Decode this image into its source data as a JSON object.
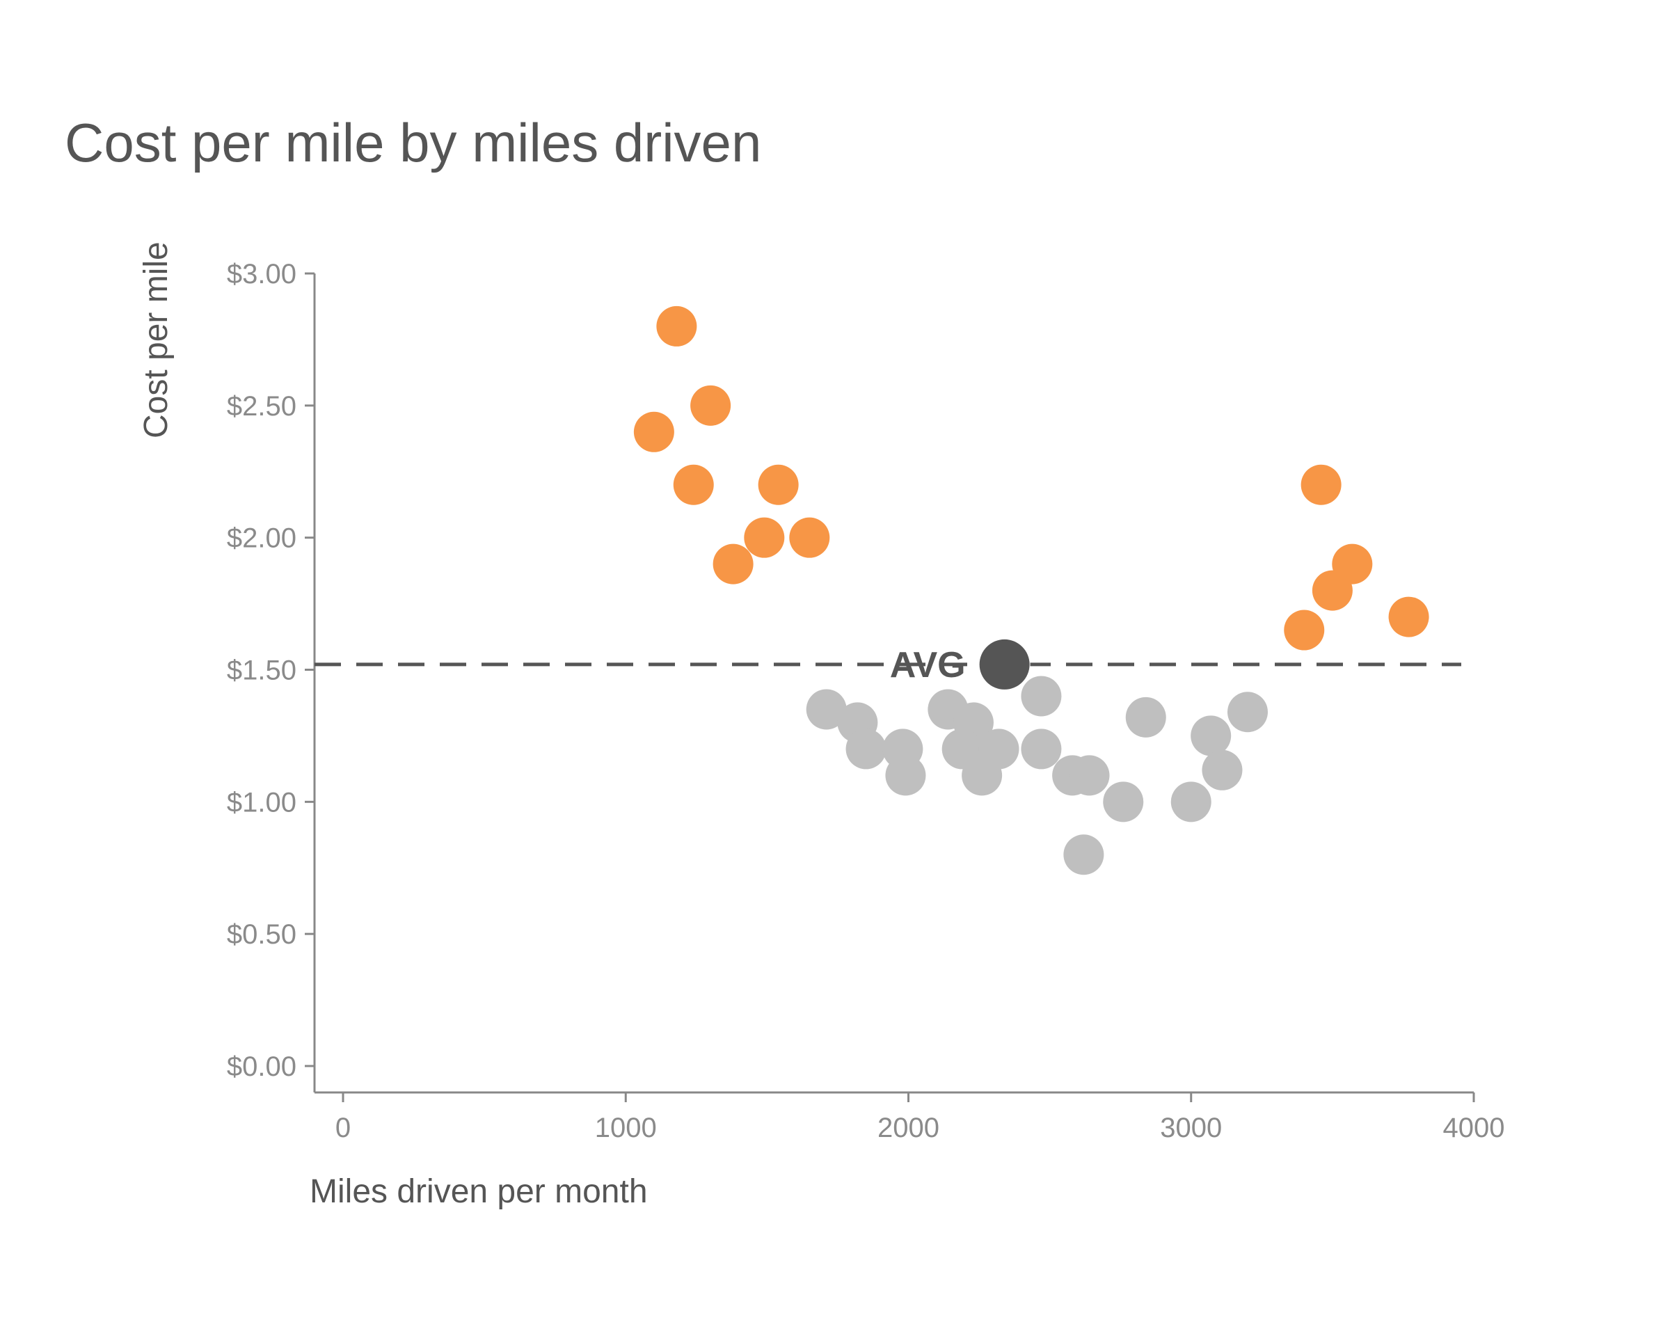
{
  "chart_data": {
    "type": "scatter",
    "title": "Cost per mile by miles driven",
    "xlabel": "Miles driven per month",
    "ylabel": "Cost per mile",
    "xlim": [
      -100,
      4000
    ],
    "ylim": [
      -0.1,
      3.0
    ],
    "x_ticks": [
      0,
      1000,
      2000,
      3000,
      4000
    ],
    "x_tick_labels": [
      "0",
      "1000",
      "2000",
      "3000",
      "4000"
    ],
    "y_ticks": [
      0,
      0.5,
      1.0,
      1.5,
      2.0,
      2.5,
      3.0
    ],
    "y_tick_labels": [
      "$0.00",
      "$0.50",
      "$1.00",
      "$1.50",
      "$2.00",
      "$2.50",
      "$3.00"
    ],
    "grid": false,
    "colors": {
      "highlight": "#f79646",
      "normal": "#bfbfbf",
      "average": "#555555"
    },
    "series": [
      {
        "color": "#f79646",
        "points": [
          {
            "x": 1180,
            "y": 2.8
          },
          {
            "x": 1100,
            "y": 2.4
          },
          {
            "x": 1300,
            "y": 2.5
          },
          {
            "x": 1240,
            "y": 2.2
          },
          {
            "x": 1540,
            "y": 2.2
          },
          {
            "x": 1490,
            "y": 2.0
          },
          {
            "x": 1650,
            "y": 2.0
          },
          {
            "x": 1380,
            "y": 1.9
          },
          {
            "x": 3460,
            "y": 2.2
          },
          {
            "x": 3570,
            "y": 1.9
          },
          {
            "x": 3500,
            "y": 1.8
          },
          {
            "x": 3770,
            "y": 1.7
          },
          {
            "x": 3400,
            "y": 1.65
          }
        ]
      },
      {
        "color": "#bfbfbf",
        "points": [
          {
            "x": 1710,
            "y": 1.35
          },
          {
            "x": 1820,
            "y": 1.3
          },
          {
            "x": 1850,
            "y": 1.2
          },
          {
            "x": 1980,
            "y": 1.2
          },
          {
            "x": 1990,
            "y": 1.1
          },
          {
            "x": 2140,
            "y": 1.35
          },
          {
            "x": 2230,
            "y": 1.3
          },
          {
            "x": 2190,
            "y": 1.2
          },
          {
            "x": 2320,
            "y": 1.2
          },
          {
            "x": 2260,
            "y": 1.1
          },
          {
            "x": 2470,
            "y": 1.4
          },
          {
            "x": 2470,
            "y": 1.2
          },
          {
            "x": 2580,
            "y": 1.1
          },
          {
            "x": 2640,
            "y": 1.1
          },
          {
            "x": 2620,
            "y": 0.8
          },
          {
            "x": 2760,
            "y": 1.0
          },
          {
            "x": 2840,
            "y": 1.32
          },
          {
            "x": 3000,
            "y": 1.0
          },
          {
            "x": 3070,
            "y": 1.25
          },
          {
            "x": 3110,
            "y": 1.12
          },
          {
            "x": 3200,
            "y": 1.34
          }
        ]
      }
    ],
    "average": {
      "label": "AVG",
      "x": 2340,
      "y": 1.52,
      "line_style": "dashed"
    }
  }
}
